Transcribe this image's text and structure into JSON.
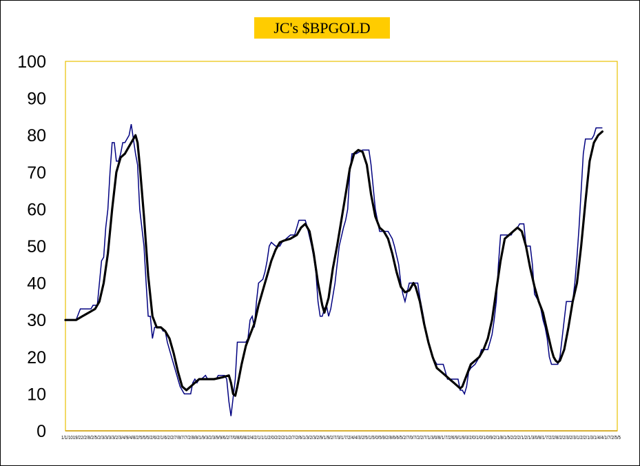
{
  "title": "JC's $BPGOLD",
  "colors": {
    "title_bg": "#ffcc00",
    "plot_border": "#e8c000",
    "x_axis": "#cc9900",
    "raw_line": "#000080",
    "smooth_line": "#000000"
  },
  "chart_data": {
    "type": "line",
    "title": "JC's $BPGOLD",
    "xlabel": "",
    "ylabel": "",
    "ylim": [
      0,
      100
    ],
    "y_ticks": [
      "0",
      "10",
      "20",
      "30",
      "40",
      "50",
      "60",
      "70",
      "80",
      "90",
      "100"
    ],
    "x_tick_text": "1/1/1019/22/2/8/2/5/2/3/3/3/3/2/3/4/9/4/8/2/5/5/5/2/6/2/1/6/2/2/7/8/7/7/2/8/8/1/9/3/2/3/9/9/6/2/7/0/8/0/8/2/4/2/1/1/1/2/0/2/2/2/1/2/7/2/6/1/3/2/3/2/9/1/9/2/7/3/1/7/2/4/4/3/2/5/1/5/0/5/9/2/8/6/6/5/2/7/0/7/2/2/7/1/3/0/8/1/7/2/6/9/1/9/3/2/0/1/0/1/0/9/2/1/8/1/5/2/2/2/1/2/1/3/0/8/1/7/2/2/8/2/2/3/2/3/1/2/2/1/3/1/4/4/1/7/2/5/5",
    "x_range": [
      0,
      260
    ],
    "series": [
      {
        "style": "raw",
        "points": [
          [
            0,
            30
          ],
          [
            5,
            30
          ],
          [
            7,
            33
          ],
          [
            10,
            33
          ],
          [
            12,
            33
          ],
          [
            13,
            34
          ],
          [
            15,
            34
          ],
          [
            16,
            40
          ],
          [
            17,
            46
          ],
          [
            18,
            47
          ],
          [
            19,
            55
          ],
          [
            20,
            60
          ],
          [
            21,
            70
          ],
          [
            22,
            78
          ],
          [
            23,
            78
          ],
          [
            24,
            73
          ],
          [
            25,
            73
          ],
          [
            26,
            75
          ],
          [
            27,
            78
          ],
          [
            28,
            78
          ],
          [
            29,
            79
          ],
          [
            30,
            80
          ],
          [
            31,
            83
          ],
          [
            32,
            79
          ],
          [
            33,
            75
          ],
          [
            34,
            72
          ],
          [
            35,
            60
          ],
          [
            36,
            55
          ],
          [
            37,
            50
          ],
          [
            38,
            40
          ],
          [
            39,
            31
          ],
          [
            40,
            31
          ],
          [
            41,
            25
          ],
          [
            42,
            28
          ],
          [
            43,
            28
          ],
          [
            45,
            28
          ],
          [
            46,
            27
          ],
          [
            47,
            27
          ],
          [
            48,
            24
          ],
          [
            50,
            20
          ],
          [
            51,
            18
          ],
          [
            53,
            14
          ],
          [
            54,
            12
          ],
          [
            56,
            10
          ],
          [
            57,
            10
          ],
          [
            59,
            10
          ],
          [
            60,
            13
          ],
          [
            61,
            14
          ],
          [
            62,
            13
          ],
          [
            63,
            14
          ],
          [
            64,
            14
          ],
          [
            66,
            15
          ],
          [
            67,
            14
          ],
          [
            69,
            14
          ],
          [
            71,
            14
          ],
          [
            72,
            15
          ],
          [
            75,
            15
          ],
          [
            76,
            14
          ],
          [
            77,
            8
          ],
          [
            78,
            4
          ],
          [
            79,
            9
          ],
          [
            80,
            14
          ],
          [
            81,
            24
          ],
          [
            83,
            24
          ],
          [
            85,
            24
          ],
          [
            86,
            25
          ],
          [
            87,
            30
          ],
          [
            88,
            31
          ],
          [
            89,
            28
          ],
          [
            90,
            35
          ],
          [
            91,
            40
          ],
          [
            93,
            41
          ],
          [
            94,
            43
          ],
          [
            95,
            46
          ],
          [
            96,
            50
          ],
          [
            97,
            51
          ],
          [
            99,
            50
          ],
          [
            101,
            50
          ],
          [
            102,
            51
          ],
          [
            104,
            52
          ],
          [
            106,
            53
          ],
          [
            108,
            53
          ],
          [
            110,
            57
          ],
          [
            113,
            57
          ],
          [
            114,
            55
          ],
          [
            116,
            50
          ],
          [
            117,
            47
          ],
          [
            118,
            43
          ],
          [
            119,
            35
          ],
          [
            120,
            31
          ],
          [
            121,
            31
          ],
          [
            122,
            33
          ],
          [
            123,
            34
          ],
          [
            124,
            31
          ],
          [
            125,
            33
          ],
          [
            127,
            40
          ],
          [
            128,
            45
          ],
          [
            129,
            50
          ],
          [
            131,
            55
          ],
          [
            132,
            57
          ],
          [
            133,
            60
          ],
          [
            134,
            70
          ],
          [
            135,
            75
          ],
          [
            137,
            75
          ],
          [
            140,
            76
          ],
          [
            143,
            76
          ],
          [
            144,
            72
          ],
          [
            146,
            60
          ],
          [
            148,
            54
          ],
          [
            150,
            54
          ],
          [
            152,
            54
          ],
          [
            154,
            52
          ],
          [
            155,
            50
          ],
          [
            157,
            45
          ],
          [
            158,
            40
          ],
          [
            159,
            37
          ],
          [
            160,
            35
          ],
          [
            162,
            40
          ],
          [
            166,
            40
          ],
          [
            167,
            36
          ],
          [
            168,
            33
          ],
          [
            169,
            30
          ],
          [
            170,
            26
          ],
          [
            172,
            22
          ],
          [
            173,
            20
          ],
          [
            175,
            18
          ],
          [
            178,
            18
          ],
          [
            179,
            16
          ],
          [
            180,
            14
          ],
          [
            185,
            14
          ],
          [
            186,
            11
          ],
          [
            187,
            11
          ],
          [
            188,
            10
          ],
          [
            189,
            12
          ],
          [
            190,
            16
          ],
          [
            191,
            17
          ],
          [
            193,
            18
          ],
          [
            194,
            19
          ],
          [
            195,
            20
          ],
          [
            196,
            22
          ],
          [
            199,
            22
          ],
          [
            200,
            24
          ],
          [
            201,
            26
          ],
          [
            202,
            30
          ],
          [
            203,
            35
          ],
          [
            204,
            45
          ],
          [
            205,
            53
          ],
          [
            210,
            53
          ],
          [
            211,
            54
          ],
          [
            213,
            55
          ],
          [
            214,
            56
          ],
          [
            216,
            56
          ],
          [
            217,
            50
          ],
          [
            219,
            50
          ],
          [
            220,
            45
          ],
          [
            221,
            37
          ],
          [
            222,
            36
          ],
          [
            223,
            35
          ],
          [
            224,
            33
          ],
          [
            225,
            30
          ],
          [
            226,
            28
          ],
          [
            227,
            25
          ],
          [
            228,
            20
          ],
          [
            229,
            18
          ],
          [
            232,
            18
          ],
          [
            233,
            20
          ],
          [
            234,
            25
          ],
          [
            235,
            30
          ],
          [
            236,
            35
          ],
          [
            239,
            35
          ],
          [
            240,
            40
          ],
          [
            241,
            47
          ],
          [
            242,
            55
          ],
          [
            243,
            65
          ],
          [
            244,
            75
          ],
          [
            245,
            79
          ],
          [
            248,
            79
          ],
          [
            249,
            80
          ],
          [
            250,
            82
          ],
          [
            253,
            82
          ]
        ]
      },
      {
        "style": "smooth",
        "points": [
          [
            0,
            30
          ],
          [
            5,
            30
          ],
          [
            8,
            31
          ],
          [
            11,
            32
          ],
          [
            14,
            33
          ],
          [
            16,
            35
          ],
          [
            18,
            40
          ],
          [
            20,
            48
          ],
          [
            22,
            60
          ],
          [
            24,
            70
          ],
          [
            26,
            74
          ],
          [
            28,
            75
          ],
          [
            30,
            77
          ],
          [
            32,
            79
          ],
          [
            33,
            80
          ],
          [
            34,
            78
          ],
          [
            35,
            72
          ],
          [
            37,
            58
          ],
          [
            39,
            42
          ],
          [
            41,
            31
          ],
          [
            43,
            28
          ],
          [
            45,
            28
          ],
          [
            47,
            27
          ],
          [
            49,
            25
          ],
          [
            51,
            21
          ],
          [
            53,
            16
          ],
          [
            55,
            12
          ],
          [
            57,
            11
          ],
          [
            59,
            12
          ],
          [
            61,
            13
          ],
          [
            63,
            14
          ],
          [
            66,
            14
          ],
          [
            70,
            14
          ],
          [
            74,
            14.5
          ],
          [
            77,
            15
          ],
          [
            78,
            13
          ],
          [
            79,
            10
          ],
          [
            80,
            9.5
          ],
          [
            81,
            12
          ],
          [
            83,
            18
          ],
          [
            85,
            23
          ],
          [
            87,
            26
          ],
          [
            89,
            29
          ],
          [
            91,
            34
          ],
          [
            93,
            38
          ],
          [
            95,
            42
          ],
          [
            97,
            46
          ],
          [
            99,
            49
          ],
          [
            101,
            51
          ],
          [
            103,
            51.5
          ],
          [
            106,
            52
          ],
          [
            109,
            53
          ],
          [
            111,
            55
          ],
          [
            113,
            56
          ],
          [
            115,
            54
          ],
          [
            117,
            48
          ],
          [
            119,
            40
          ],
          [
            121,
            34
          ],
          [
            122,
            32
          ],
          [
            124,
            36
          ],
          [
            126,
            44
          ],
          [
            128,
            50
          ],
          [
            130,
            57
          ],
          [
            132,
            64
          ],
          [
            134,
            71
          ],
          [
            136,
            75
          ],
          [
            138,
            76
          ],
          [
            140,
            75.5
          ],
          [
            142,
            72
          ],
          [
            144,
            64
          ],
          [
            146,
            58
          ],
          [
            148,
            55
          ],
          [
            150,
            54
          ],
          [
            152,
            52
          ],
          [
            154,
            48
          ],
          [
            156,
            43
          ],
          [
            158,
            39
          ],
          [
            160,
            37.5
          ],
          [
            162,
            38
          ],
          [
            164,
            40
          ],
          [
            165,
            39
          ],
          [
            167,
            35
          ],
          [
            169,
            29
          ],
          [
            171,
            24
          ],
          [
            173,
            20
          ],
          [
            175,
            17
          ],
          [
            177,
            16
          ],
          [
            179,
            15
          ],
          [
            181,
            14
          ],
          [
            183,
            13
          ],
          [
            185,
            12
          ],
          [
            186,
            11.5
          ],
          [
            187,
            12
          ],
          [
            189,
            15
          ],
          [
            191,
            18
          ],
          [
            193,
            19
          ],
          [
            195,
            20
          ],
          [
            197,
            22
          ],
          [
            199,
            25
          ],
          [
            201,
            30
          ],
          [
            203,
            38
          ],
          [
            205,
            46
          ],
          [
            207,
            52
          ],
          [
            209,
            53
          ],
          [
            211,
            54
          ],
          [
            213,
            55
          ],
          [
            215,
            54
          ],
          [
            217,
            50
          ],
          [
            219,
            44
          ],
          [
            221,
            39
          ],
          [
            223,
            35
          ],
          [
            225,
            32
          ],
          [
            227,
            27
          ],
          [
            229,
            22
          ],
          [
            230,
            20
          ],
          [
            231,
            19
          ],
          [
            232,
            18.5
          ],
          [
            233,
            19
          ],
          [
            235,
            22
          ],
          [
            237,
            28
          ],
          [
            239,
            35
          ],
          [
            241,
            40
          ],
          [
            243,
            50
          ],
          [
            245,
            62
          ],
          [
            247,
            73
          ],
          [
            249,
            78
          ],
          [
            251,
            80
          ],
          [
            253,
            81
          ]
        ]
      }
    ]
  }
}
